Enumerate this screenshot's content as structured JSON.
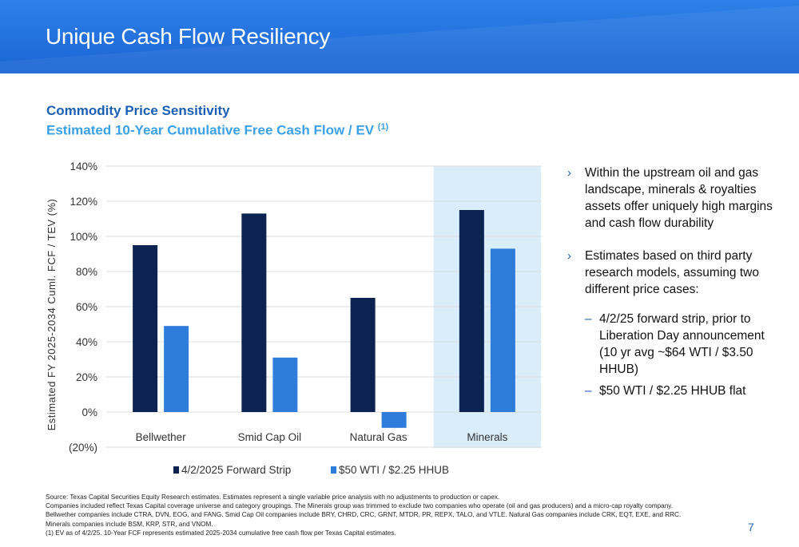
{
  "header": {
    "title": "Unique Cash Flow Resiliency"
  },
  "subtitle_1": "Commodity Price Sensitivity",
  "subtitle_2": "Estimated 10-Year Cumulative Free Cash Flow / EV",
  "subtitle_2_note": "(1)",
  "chart_data": {
    "type": "bar",
    "title": "",
    "xlabel": "",
    "ylabel": "Estimated FY 2025-2034 Cuml. FCF / TEV (%)",
    "categories": [
      "Bellwether",
      "Smid Cap Oil",
      "Natural Gas",
      "Minerals"
    ],
    "series": [
      {
        "name": "4/2/2025 Forward Strip",
        "values": [
          95,
          113,
          65,
          115
        ],
        "color": "#0c2250"
      },
      {
        "name": "$50 WTI / $2.25 HHUB",
        "values": [
          49,
          31,
          -9,
          93
        ],
        "color": "#2e7ddb"
      }
    ],
    "ylim": [
      -20,
      140
    ],
    "yticks": [
      -20,
      0,
      20,
      40,
      60,
      80,
      100,
      120,
      140
    ],
    "ytick_labels": [
      "(20%)",
      "0%",
      "20%",
      "40%",
      "60%",
      "80%",
      "100%",
      "120%",
      "140%"
    ],
    "highlight_category": "Minerals",
    "highlight_color": "#d9eefa",
    "grid": true,
    "legend_position": "bottom"
  },
  "bullets": [
    {
      "text": "Within the upstream oil and gas landscape, minerals & royalties assets offer uniquely high margins and cash flow durability",
      "subs": []
    },
    {
      "text": "Estimates based on third party research models, assuming two different price cases:",
      "subs": [
        "4/2/25 forward strip, prior to Liberation Day announcement\n(10 yr avg ~$64 WTI / $3.50 HHUB)",
        "$50 WTI / $2.25 HHUB flat"
      ]
    }
  ],
  "footnotes": [
    "Source: Texas Capital Securities Equity Research estimates.  Estimates represent a single variable price analysis with no adjustments to production or capex.",
    "Companies included reflect Texas Capital coverage universe and category groupings. The Minerals group was trimmed to exclude two companies who operate (oil and gas producers) and a micro-cap royalty company.",
    "Bellwether companies include CTRA, DVN, EOG, and FANG.  Smid Cap Oil companies include BRY, CHRD, CRC, GRNT, MTDR, PR, REPX, TALO, and VTLE. Natural Gas companies include CRK, EQT, EXE, and RRC.",
    "Minerals companies include BSM, KRP, STR, and VNOM.",
    "(1) EV as of 4/2/25. 10-Year FCF represents estimated 2025-2034 cumulative free cash flow per Texas Capital estimates."
  ],
  "page_number": "7"
}
